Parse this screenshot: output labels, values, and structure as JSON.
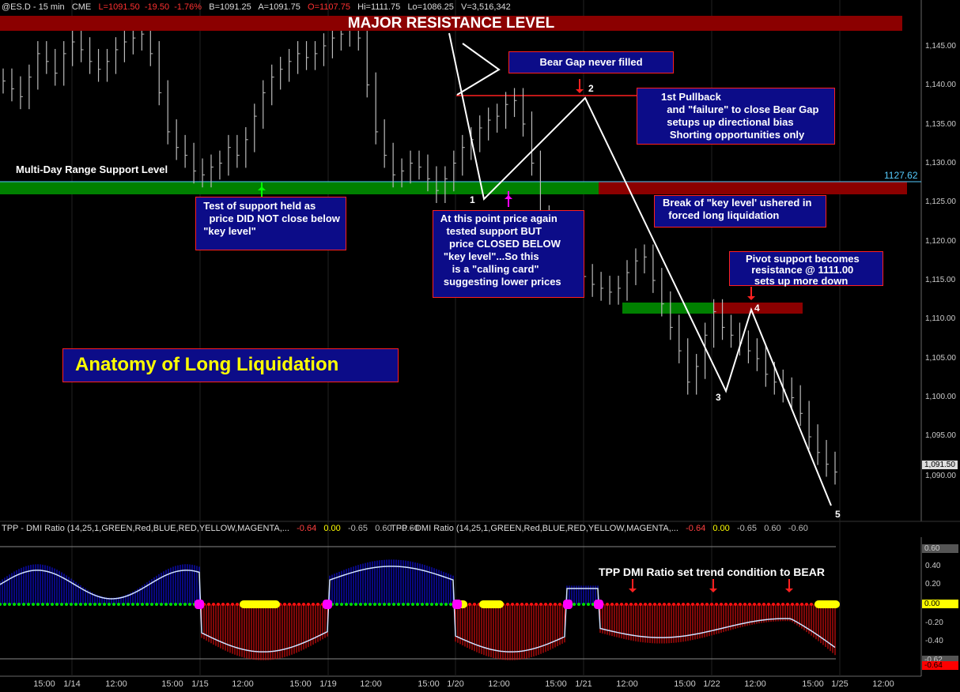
{
  "header": {
    "symbol": "@ES.D - 15 min",
    "exchange": "CME",
    "last": "L=1091.50",
    "change": "-19.50",
    "change_pct": "-1.76%",
    "bid": "B=1091.25",
    "ask": "A=1091.75",
    "open": "O=1107.75",
    "high": "Hi=1111.75",
    "low": "Lo=1086.25",
    "volume": "V=3,516,342"
  },
  "annotations": {
    "major_resistance": "MAJOR RESISTANCE LEVEL",
    "bear_gap": "Bear Gap never filled",
    "pullback": "1st Pullback\n  and \"failure\" to close Bear Gap\n  setups up directional bias\n   Shorting opportunities only",
    "support_label": "Multi-Day Range Support Level",
    "support_price": "1127.62",
    "test_support": "  Test of support held as\n    price DID NOT close below\n  \"key level\"",
    "calling_card": "  At this point price again\n    tested support BUT\n     price CLOSED BELOW\n   \"key level\"...So this\n      is a \"calling card\"\n   suggesting lower prices",
    "break_key": "Break of \"key level' ushered in\n  forced long liquidation",
    "pivot": "Pivot support becomes\n  resistance @ 1111.00\n   sets up more down",
    "anatomy": "Anatomy of Long Liquidation",
    "tpp_note": "TPP DMI Ratio  set trend condition to BEAR",
    "wave_labels": [
      "1",
      "2",
      "3",
      "4",
      "5"
    ]
  },
  "indicator": {
    "name": "TPP - DMI Ratio (14,25,1,GREEN,Red,BLUE,RED,YELLOW,MAGENTA,...",
    "v1": "-0.64",
    "v2": "0.00",
    "v3": "-0.65",
    "v4": "0.60",
    "v5": "-0.60",
    "axis_labels": [
      "0.60",
      "0.40",
      "0.20",
      "0.00",
      "-0.20",
      "-0.40",
      "-0.62",
      "-0.64"
    ]
  },
  "price_axis": [
    "1,145.00",
    "1,140.00",
    "1,135.00",
    "1,130.00",
    "1,125.00",
    "1,120.00",
    "1,115.00",
    "1,110.00",
    "1,105.00",
    "1,100.00",
    "1,095.00",
    "1,091.50",
    "1,090.00"
  ],
  "time_axis": [
    "15:00",
    "1/14",
    "12:00",
    "15:00",
    "1/15",
    "12:00",
    "15:00",
    "1/19",
    "12:00",
    "15:00",
    "1/20",
    "12:00",
    "15:00",
    "1/21",
    "12:00",
    "15:00",
    "1/22",
    "12:00",
    "15:00",
    "1/25",
    "12:00"
  ],
  "colors": {
    "resistance": "#8b0000",
    "support": "#008000",
    "note_bg": "#0c0c88",
    "note_border": "#ff2020",
    "bull_hist": "#1010ff",
    "bear_hist": "#ff1010",
    "neutral_dots": "#00dd00",
    "yellow_marks": "#ffff00",
    "magenta_marks": "#ff00ff"
  },
  "chart_data": {
    "type": "line",
    "title": "",
    "xlabel": "",
    "ylabel": "",
    "ylim": [
      1085,
      1148
    ],
    "series": [
      {
        "values": [
          1140.5,
          1139.5,
          1138.5,
          1141,
          1144,
          1143,
          1141.5,
          1144,
          1145.5,
          1144.5,
          1143,
          1142,
          1143,
          1144.5,
          1145.5,
          1146,
          1146.5,
          1144,
          1139,
          1134,
          1132,
          1131,
          1129,
          1128.5,
          1129.5,
          1130,
          1132,
          1131,
          1133,
          1136,
          1139,
          1141,
          1142,
          1143,
          1144,
          1143.5,
          1144,
          1145,
          1146,
          1146.5,
          1147,
          1146,
          1140,
          1134,
          1131,
          1128.5,
          1129,
          1130,
          1129.5,
          1128,
          1126.5,
          1128,
          1130,
          1132,
          1133,
          1134.5,
          1135.5,
          1136,
          1137.5,
          1138,
          1135,
          1130,
          1123,
          1120,
          1118,
          1117,
          1116.5,
          1115.5,
          1114.5,
          1114,
          1113.5,
          1114,
          1116,
          1117.5,
          1118,
          1115,
          1112,
          1109,
          1106,
          1102,
          1104,
          1108,
          1111,
          1109,
          1108,
          1107,
          1106,
          1105,
          1103,
          1102,
          1101,
          1100,
          1098,
          1095,
          1093,
          1091.5,
          1090.5
        ]
      }
    ]
  }
}
